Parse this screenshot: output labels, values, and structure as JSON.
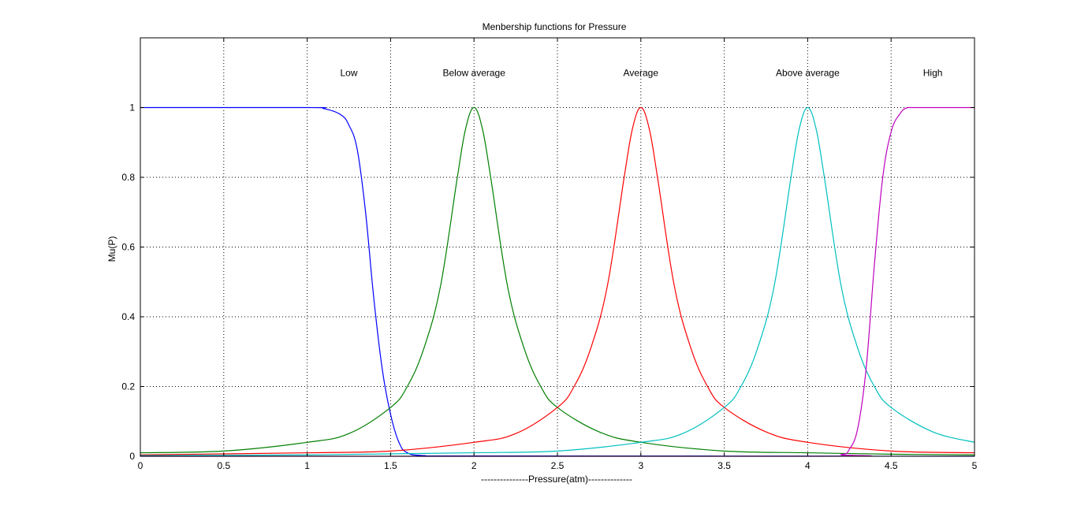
{
  "chart_data": {
    "type": "line",
    "title": "Menbership functions for Pressure",
    "xlabel": "---------------Pressure(atm)--------------",
    "ylabel": "Mu(P)",
    "xlim": [
      0,
      5
    ],
    "ylim": [
      0,
      1.2
    ],
    "grid": true,
    "xticks": [
      "0",
      "0.5",
      "1",
      "1.5",
      "2",
      "2.5",
      "3",
      "3.5",
      "4",
      "4.5",
      "5"
    ],
    "yticks": [
      "0",
      "0.2",
      "0.4",
      "0.6",
      "0.8",
      "1"
    ],
    "annotations": [
      {
        "text": "Low",
        "x": 1.25,
        "y": 1.1
      },
      {
        "text": "Below average",
        "x": 2.0,
        "y": 1.1
      },
      {
        "text": "Average",
        "x": 3.0,
        "y": 1.1
      },
      {
        "text": "Above average",
        "x": 4.0,
        "y": 1.1
      },
      {
        "text": "High",
        "x": 4.75,
        "y": 1.1
      }
    ],
    "series": [
      {
        "color": "#0000ff",
        "x": [
          0,
          1.0,
          1.1,
          1.2,
          1.25,
          1.3,
          1.35,
          1.4,
          1.45,
          1.5,
          1.55,
          1.6,
          1.7,
          2.0,
          5.0
        ],
        "y": [
          1,
          1,
          0.997,
          0.98,
          0.95,
          0.88,
          0.7,
          0.45,
          0.25,
          0.12,
          0.04,
          0.01,
          0.002,
          0.001,
          0.0
        ]
      },
      {
        "color": "#007f00",
        "x": [
          0,
          0.5,
          1.0,
          1.25,
          1.5,
          1.6,
          1.7,
          1.8,
          1.9,
          1.95,
          2.0,
          2.05,
          2.1,
          2.2,
          2.3,
          2.4,
          2.5,
          2.75,
          3.0,
          3.5,
          4.0,
          4.5,
          5.0
        ],
        "y": [
          0.01,
          0.015,
          0.04,
          0.065,
          0.14,
          0.2,
          0.31,
          0.49,
          0.8,
          0.94,
          1.0,
          0.94,
          0.8,
          0.49,
          0.31,
          0.2,
          0.14,
          0.07,
          0.04,
          0.015,
          0.01,
          0.006,
          0.004
        ]
      },
      {
        "color": "#ff0000",
        "x": [
          0,
          1.0,
          1.5,
          2.0,
          2.25,
          2.5,
          2.6,
          2.7,
          2.8,
          2.9,
          2.95,
          3.0,
          3.05,
          3.1,
          3.2,
          3.3,
          3.4,
          3.5,
          3.75,
          4.0,
          4.5,
          5.0
        ],
        "y": [
          0.004,
          0.01,
          0.015,
          0.04,
          0.065,
          0.14,
          0.2,
          0.31,
          0.49,
          0.8,
          0.94,
          1.0,
          0.94,
          0.8,
          0.49,
          0.31,
          0.2,
          0.14,
          0.07,
          0.04,
          0.015,
          0.01
        ]
      },
      {
        "color": "#00bfbf",
        "x": [
          0,
          1.0,
          2.0,
          2.5,
          3.0,
          3.25,
          3.5,
          3.6,
          3.7,
          3.8,
          3.9,
          3.95,
          4.0,
          4.05,
          4.1,
          4.2,
          4.3,
          4.4,
          4.5,
          4.75,
          5.0
        ],
        "y": [
          0.002,
          0.004,
          0.01,
          0.015,
          0.04,
          0.065,
          0.14,
          0.2,
          0.31,
          0.49,
          0.8,
          0.94,
          1.0,
          0.94,
          0.8,
          0.49,
          0.31,
          0.2,
          0.14,
          0.07,
          0.04
        ]
      },
      {
        "color": "#bf00bf",
        "x": [
          0,
          4.0,
          4.2,
          4.25,
          4.3,
          4.35,
          4.4,
          4.45,
          4.5,
          4.55,
          4.6,
          4.7,
          5.0
        ],
        "y": [
          0,
          0.0,
          0.005,
          0.02,
          0.08,
          0.25,
          0.55,
          0.8,
          0.93,
          0.98,
          1.0,
          1.0,
          1.0
        ]
      }
    ]
  }
}
